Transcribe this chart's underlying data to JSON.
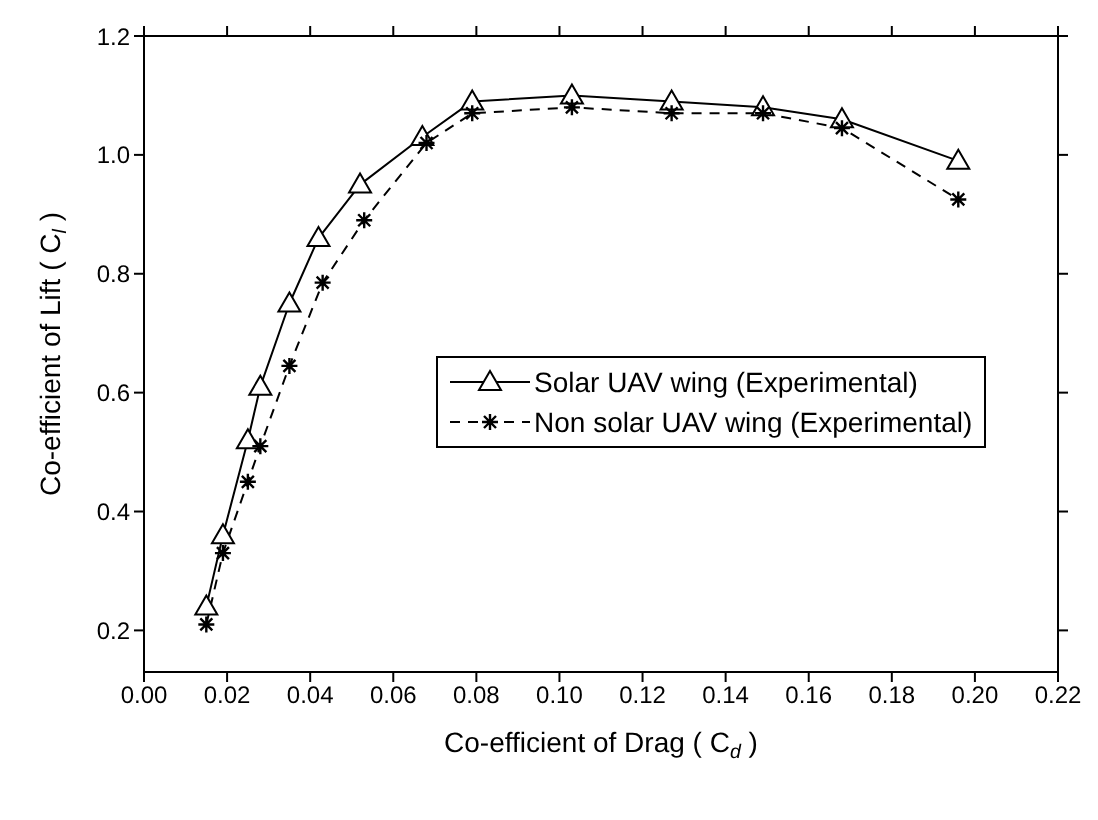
{
  "chart_data": {
    "type": "line",
    "xlabel": "Co-efficient of Drag ( C$_{d}$ )",
    "ylabel": "Co-efficient of Lift ( C$_{l}$ )",
    "xlim": [
      0,
      0.22
    ],
    "xticks": [
      {
        "value": 0,
        "label": "0.00"
      },
      {
        "value": 0.02,
        "label": "0.02"
      },
      {
        "value": 0.04,
        "label": "0.04"
      },
      {
        "value": 0.06,
        "label": "0.06"
      },
      {
        "value": 0.08,
        "label": "0.08"
      },
      {
        "value": 0.1,
        "label": "0.10"
      },
      {
        "value": 0.12,
        "label": "0.12"
      },
      {
        "value": 0.14,
        "label": "0.14"
      },
      {
        "value": 0.16,
        "label": "0.16"
      },
      {
        "value": 0.18,
        "label": "0.18"
      },
      {
        "value": 0.2,
        "label": "0.20"
      },
      {
        "value": 0.22,
        "label": "0.22"
      }
    ],
    "ylim": [
      0.13,
      1.2
    ],
    "yticks": [
      {
        "value": 0.2,
        "label": "0.2"
      },
      {
        "value": 0.4,
        "label": "0.4"
      },
      {
        "value": 0.6,
        "label": "0.6"
      },
      {
        "value": 0.8,
        "label": "0.8"
      },
      {
        "value": 1.0,
        "label": "1.0"
      },
      {
        "value": 1.2,
        "label": "1.2"
      }
    ],
    "legend": "right",
    "series": [
      {
        "name": "Solar UAV wing (Experimental)",
        "color": "#000000",
        "marker": "triangle",
        "line_style": "solid",
        "x": [
          0.015,
          0.019,
          0.025,
          0.028,
          0.035,
          0.042,
          0.052,
          0.067,
          0.079,
          0.103,
          0.127,
          0.149,
          0.168,
          0.196
        ],
        "values": [
          0.24,
          0.36,
          0.52,
          0.61,
          0.75,
          0.86,
          0.95,
          1.03,
          1.09,
          1.1,
          1.09,
          1.08,
          1.06,
          0.99
        ]
      },
      {
        "name": "Non solar UAV wing (Experimental)",
        "color": "#000000",
        "marker": "cross",
        "line_style": "dashed",
        "x": [
          0.015,
          0.019,
          0.025,
          0.028,
          0.035,
          0.043,
          0.053,
          0.068,
          0.079,
          0.103,
          0.127,
          0.149,
          0.168,
          0.196
        ],
        "values": [
          0.21,
          0.33,
          0.45,
          0.51,
          0.645,
          0.785,
          0.89,
          1.02,
          1.07,
          1.08,
          1.07,
          1.07,
          1.045,
          0.925
        ]
      }
    ]
  }
}
